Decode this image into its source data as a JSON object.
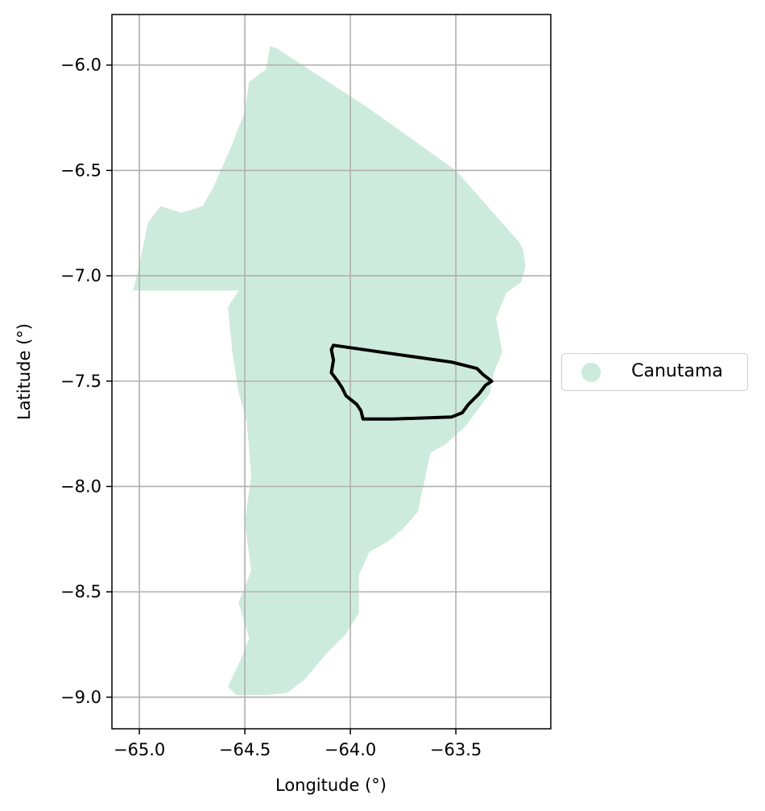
{
  "chart_data": {
    "type": "map",
    "title": "",
    "xlabel": "Longitude (°)",
    "ylabel": "Latitude (°)",
    "xlim": [
      -65.13,
      -63.05
    ],
    "ylim": [
      -9.15,
      -5.76
    ],
    "grid": true,
    "x_ticks": [
      -65.0,
      -64.5,
      -64.0,
      -63.5
    ],
    "x_tick_labels": [
      "−65.0",
      "−64.5",
      "−64.0",
      "−63.5"
    ],
    "y_ticks": [
      -6.0,
      -6.5,
      -7.0,
      -7.5,
      -8.0,
      -8.5,
      -9.0
    ],
    "y_tick_labels": [
      "−6.0",
      "−6.5",
      "−7.0",
      "−7.5",
      "−8.0",
      "−8.5",
      "−9.0"
    ],
    "fill_color": "#cdebdc",
    "outline_color": "#000000",
    "legend": {
      "placement": "center-right, outside plot",
      "entries": [
        {
          "label": "Canutama",
          "color": "#cdebdc"
        }
      ]
    },
    "regions": [
      {
        "name": "Canutama",
        "polygon": [
          [
            -64.38,
            -5.91
          ],
          [
            -64.35,
            -5.92
          ],
          [
            -63.92,
            -6.2
          ],
          [
            -63.5,
            -6.5
          ],
          [
            -63.2,
            -6.84
          ],
          [
            -63.18,
            -6.88
          ],
          [
            -63.17,
            -6.96
          ],
          [
            -63.19,
            -7.03
          ],
          [
            -63.26,
            -7.08
          ],
          [
            -63.31,
            -7.2
          ],
          [
            -63.28,
            -7.36
          ],
          [
            -63.32,
            -7.46
          ],
          [
            -63.34,
            -7.56
          ],
          [
            -63.37,
            -7.6
          ],
          [
            -63.46,
            -7.72
          ],
          [
            -63.55,
            -7.8
          ],
          [
            -63.62,
            -7.84
          ],
          [
            -63.65,
            -7.98
          ],
          [
            -63.68,
            -8.12
          ],
          [
            -63.75,
            -8.2
          ],
          [
            -63.82,
            -8.26
          ],
          [
            -63.91,
            -8.31
          ],
          [
            -63.96,
            -8.42
          ],
          [
            -63.96,
            -8.6
          ],
          [
            -64.02,
            -8.7
          ],
          [
            -64.11,
            -8.79
          ],
          [
            -64.22,
            -8.92
          ],
          [
            -64.3,
            -8.98
          ],
          [
            -64.41,
            -8.99
          ],
          [
            -64.54,
            -8.99
          ],
          [
            -64.58,
            -8.95
          ],
          [
            -64.51,
            -8.8
          ],
          [
            -64.48,
            -8.72
          ],
          [
            -64.53,
            -8.55
          ],
          [
            -64.47,
            -8.4
          ],
          [
            -64.5,
            -8.17
          ],
          [
            -64.47,
            -7.95
          ],
          [
            -64.49,
            -7.7
          ],
          [
            -64.53,
            -7.55
          ],
          [
            -64.56,
            -7.36
          ],
          [
            -64.58,
            -7.15
          ],
          [
            -64.53,
            -7.07
          ],
          [
            -65.03,
            -7.07
          ],
          [
            -65.0,
            -6.95
          ],
          [
            -64.96,
            -6.75
          ],
          [
            -64.9,
            -6.67
          ],
          [
            -64.8,
            -6.7
          ],
          [
            -64.7,
            -6.67
          ],
          [
            -64.65,
            -6.58
          ],
          [
            -64.57,
            -6.4
          ],
          [
            -64.5,
            -6.22
          ],
          [
            -64.48,
            -6.08
          ],
          [
            -64.4,
            -6.02
          ]
        ]
      }
    ],
    "highlight_outline": {
      "polygon": [
        [
          -64.08,
          -7.33
        ],
        [
          -63.8,
          -7.37
        ],
        [
          -63.52,
          -7.41
        ],
        [
          -63.4,
          -7.44
        ],
        [
          -63.37,
          -7.47
        ],
        [
          -63.33,
          -7.5
        ],
        [
          -63.36,
          -7.52
        ],
        [
          -63.39,
          -7.56
        ],
        [
          -63.44,
          -7.61
        ],
        [
          -63.47,
          -7.65
        ],
        [
          -63.52,
          -7.67
        ],
        [
          -63.8,
          -7.68
        ],
        [
          -63.94,
          -7.68
        ],
        [
          -63.95,
          -7.64
        ],
        [
          -63.97,
          -7.61
        ],
        [
          -64.02,
          -7.57
        ],
        [
          -64.04,
          -7.53
        ],
        [
          -64.06,
          -7.5
        ],
        [
          -64.09,
          -7.46
        ],
        [
          -64.08,
          -7.4
        ],
        [
          -64.09,
          -7.35
        ]
      ]
    }
  }
}
